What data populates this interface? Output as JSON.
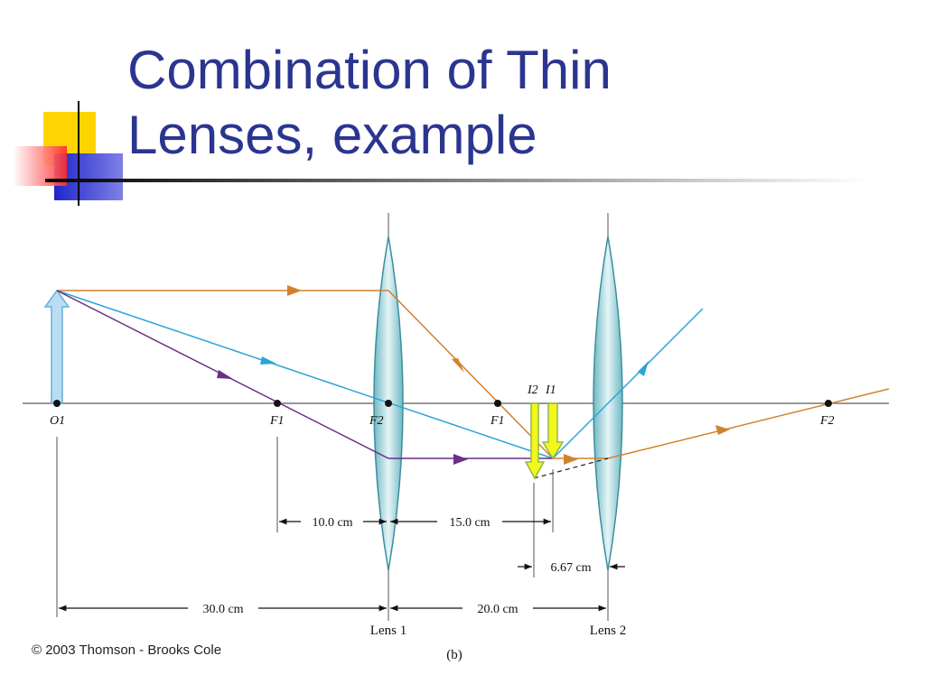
{
  "slide": {
    "title_line1": "Combination of Thin",
    "title_line2": "Lenses, example",
    "colors": {
      "title": "#2b3590",
      "orange_ray": "#d2812f",
      "blue_ray": "#2ba4d8",
      "purple_ray": "#6a2f86",
      "image_arrow": "#f4f71c"
    }
  },
  "diagram": {
    "points": {
      "o1": "O1",
      "f1_left": "F1",
      "f2_left": "F2",
      "f1_right": "F1",
      "f2_right": "F2",
      "i2": "I2",
      "i1": "I1"
    },
    "dimensions": {
      "d_10": "10.0 cm",
      "d_15": "15.0 cm",
      "d_667": "6.67 cm",
      "d_30": "30.0 cm",
      "d_20": "20.0 cm"
    },
    "lens1_label": "Lens 1",
    "lens2_label": "Lens 2",
    "panel_label": "(b)"
  },
  "footer": {
    "copyright": "© 2003 Thomson - Brooks Cole"
  }
}
